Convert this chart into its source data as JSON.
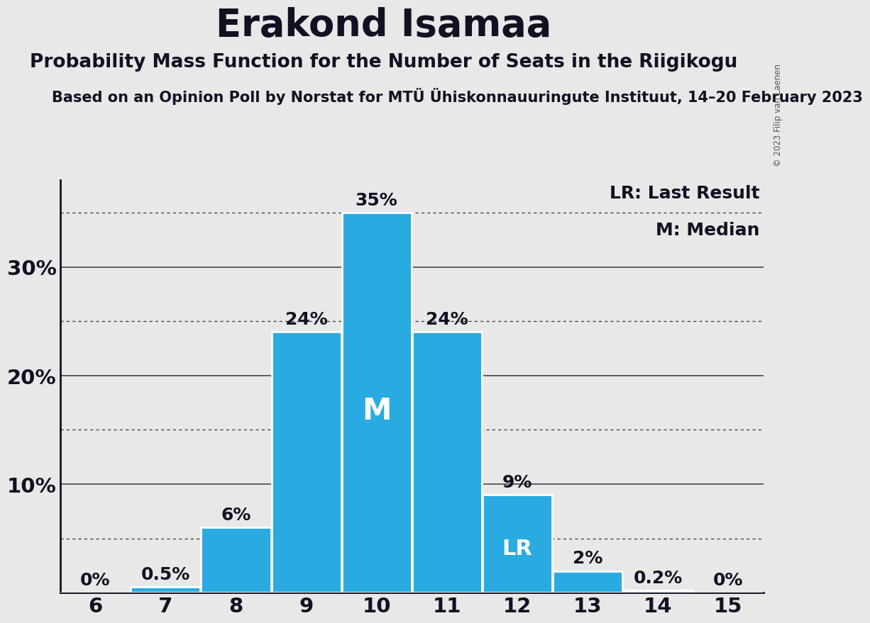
{
  "title": "Erakond Isamaa",
  "subtitle": "Probability Mass Function for the Number of Seats in the Riigikogu",
  "sub_subtitle": "Based on an Opinion Poll by Norstat for MTÜ Ühiskonnauuringute Instituut, 14–20 February 2023",
  "copyright": "© 2023 Filip van Laenen",
  "seats": [
    6,
    7,
    8,
    9,
    10,
    11,
    12,
    13,
    14,
    15
  ],
  "probabilities": [
    0.0,
    0.5,
    6.0,
    24.0,
    35.0,
    24.0,
    9.0,
    2.0,
    0.2,
    0.0
  ],
  "bar_color": "#29abe2",
  "background_color": "#e8e8e8",
  "median_seat": 10,
  "last_result_seat": 12,
  "legend_lr": "LR: Last Result",
  "legend_m": "M: Median",
  "solid_lines": [
    10,
    20,
    30
  ],
  "dotted_lines": [
    5,
    15,
    25,
    35
  ],
  "ylim": [
    0,
    38
  ],
  "bar_label_fontsize": 18,
  "title_fontsize": 38,
  "subtitle_fontsize": 19,
  "sub_subtitle_fontsize": 15,
  "tick_fontsize": 21,
  "legend_fontsize": 18,
  "annotation_m_fontsize": 30,
  "annotation_lr_fontsize": 22,
  "ytick_labels": [
    "10%",
    "20%",
    "30%"
  ],
  "ytick_values": [
    10,
    20,
    30
  ]
}
